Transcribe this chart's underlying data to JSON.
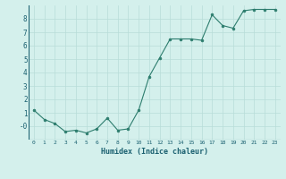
{
  "x": [
    0,
    1,
    2,
    3,
    4,
    5,
    6,
    7,
    8,
    9,
    10,
    11,
    12,
    13,
    14,
    15,
    16,
    17,
    18,
    19,
    20,
    21,
    22,
    23
  ],
  "y": [
    1.2,
    0.5,
    0.2,
    -0.4,
    -0.3,
    -0.5,
    -0.2,
    0.6,
    -0.3,
    -0.2,
    1.2,
    3.7,
    5.1,
    6.5,
    6.5,
    6.5,
    6.4,
    8.3,
    7.5,
    7.3,
    8.6,
    8.7,
    8.7,
    8.7
  ],
  "xlabel": "Humidex (Indice chaleur)",
  "ylim": [
    -1.0,
    9.0
  ],
  "xlim": [
    -0.5,
    23.5
  ],
  "ytick_vals": [
    0,
    1,
    2,
    3,
    4,
    5,
    6,
    7,
    8
  ],
  "ytick_labels": [
    "-0",
    "1",
    "2",
    "3",
    "4",
    "5",
    "6",
    "7",
    "8"
  ],
  "xticks": [
    0,
    1,
    2,
    3,
    4,
    5,
    6,
    7,
    8,
    9,
    10,
    11,
    12,
    13,
    14,
    15,
    16,
    17,
    18,
    19,
    20,
    21,
    22,
    23
  ],
  "line_color": "#2d7d6e",
  "marker_color": "#2d7d6e",
  "bg_color": "#d4f0ec",
  "grid_color": "#b8ddd8",
  "tick_color": "#1a6070",
  "xlabel_color": "#1a6070"
}
